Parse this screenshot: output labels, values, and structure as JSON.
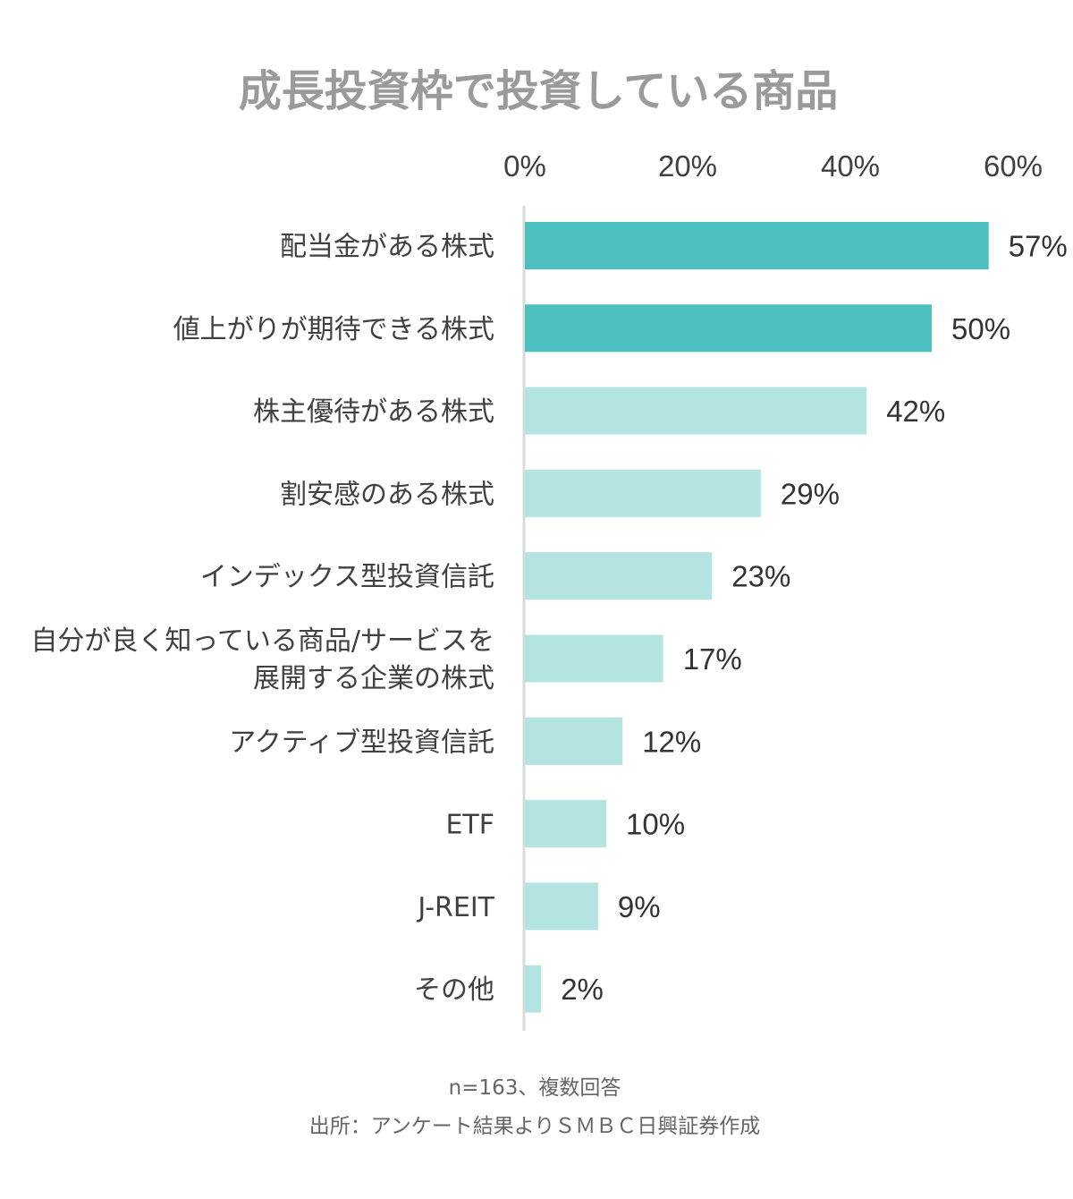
{
  "chart_data": {
    "type": "bar",
    "orientation": "horizontal",
    "title": "成長投資枠で投資している商品",
    "categories": [
      [
        "配当金がある株式"
      ],
      [
        "値上がりが期待できる株式"
      ],
      [
        "株主優待がある株式"
      ],
      [
        "割安感のある株式"
      ],
      [
        "インデックス型投資信託"
      ],
      [
        "自分が良く知っている商品/サービスを",
        "展開する企業の株式"
      ],
      [
        "アクティブ型投資信託"
      ],
      [
        "ETF"
      ],
      [
        "J-REIT"
      ],
      [
        "その他"
      ]
    ],
    "values": [
      57,
      50,
      42,
      29,
      23,
      17,
      12,
      10,
      9,
      2
    ],
    "value_labels": [
      "57%",
      "50%",
      "42%",
      "29%",
      "23%",
      "17%",
      "12%",
      "10%",
      "9%",
      "2%"
    ],
    "highlighted": [
      true,
      true,
      false,
      false,
      false,
      false,
      false,
      false,
      false,
      false
    ],
    "x_ticks": [
      "0%",
      "20%",
      "40%",
      "60%"
    ],
    "xlim": [
      0,
      60
    ],
    "axis_position": "top",
    "grid": false,
    "colors": {
      "highlight": "#4cbfbf",
      "normal": "#b4e4e1",
      "axis": "#d9d9d9",
      "title": "#9a9a9a"
    }
  },
  "notes": [
    "n=163、複数回答",
    "出所：アンケート結果よりＳＭＢＣ日興証券作成"
  ]
}
